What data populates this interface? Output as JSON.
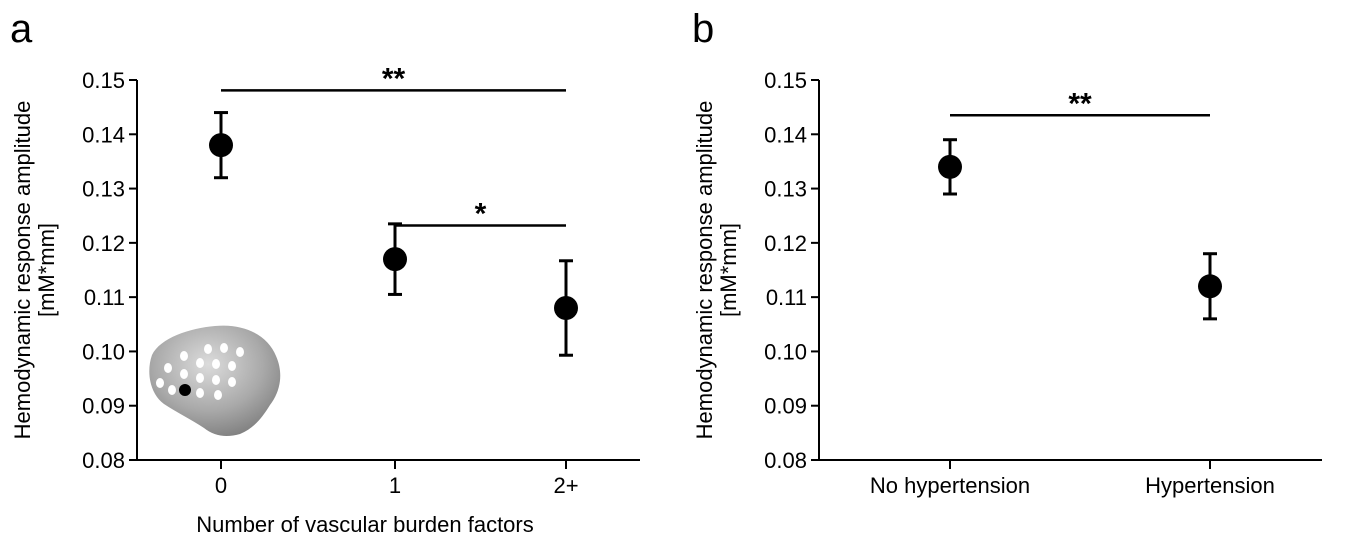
{
  "figure": {
    "background": "#ffffff",
    "ink": "#000000"
  },
  "chart_data": [
    {
      "panel": "a",
      "type": "scatter",
      "title": "",
      "xlabel": "Number of vascular burden factors",
      "ylabel_line1": "Hemodynamic response amplitude",
      "ylabel_line2": "[mM*mm]",
      "categories": [
        "0",
        "1",
        "2+"
      ],
      "values": [
        0.138,
        0.117,
        0.108
      ],
      "error_upper": [
        0.144,
        0.1235,
        0.1167
      ],
      "error_lower": [
        0.132,
        0.1105,
        0.0993
      ],
      "ylim": [
        0.08,
        0.15
      ],
      "yticks": [
        "0.08",
        "0.09",
        "0.10",
        "0.11",
        "0.12",
        "0.13",
        "0.14",
        "0.15"
      ],
      "grid": false,
      "significance": [
        {
          "from": 0,
          "to": 2,
          "y": 0.1481,
          "label": "**"
        },
        {
          "from": 1,
          "to": 2,
          "y": 0.1232,
          "label": "*"
        }
      ],
      "inset": "brain-icon"
    },
    {
      "panel": "b",
      "type": "scatter",
      "title": "",
      "xlabel": "",
      "ylabel_line1": "Hemodynamic response amplitude",
      "ylabel_line2": "[mM*mm]",
      "categories": [
        "No hypertension",
        "Hypertension"
      ],
      "values": [
        0.134,
        0.112
      ],
      "error_upper": [
        0.139,
        0.118
      ],
      "error_lower": [
        0.129,
        0.106
      ],
      "ylim": [
        0.08,
        0.15
      ],
      "yticks": [
        "0.08",
        "0.09",
        "0.10",
        "0.11",
        "0.12",
        "0.13",
        "0.14",
        "0.15"
      ],
      "grid": false,
      "significance": [
        {
          "from": 0,
          "to": 1,
          "y": 0.1435,
          "label": "**"
        }
      ]
    }
  ]
}
